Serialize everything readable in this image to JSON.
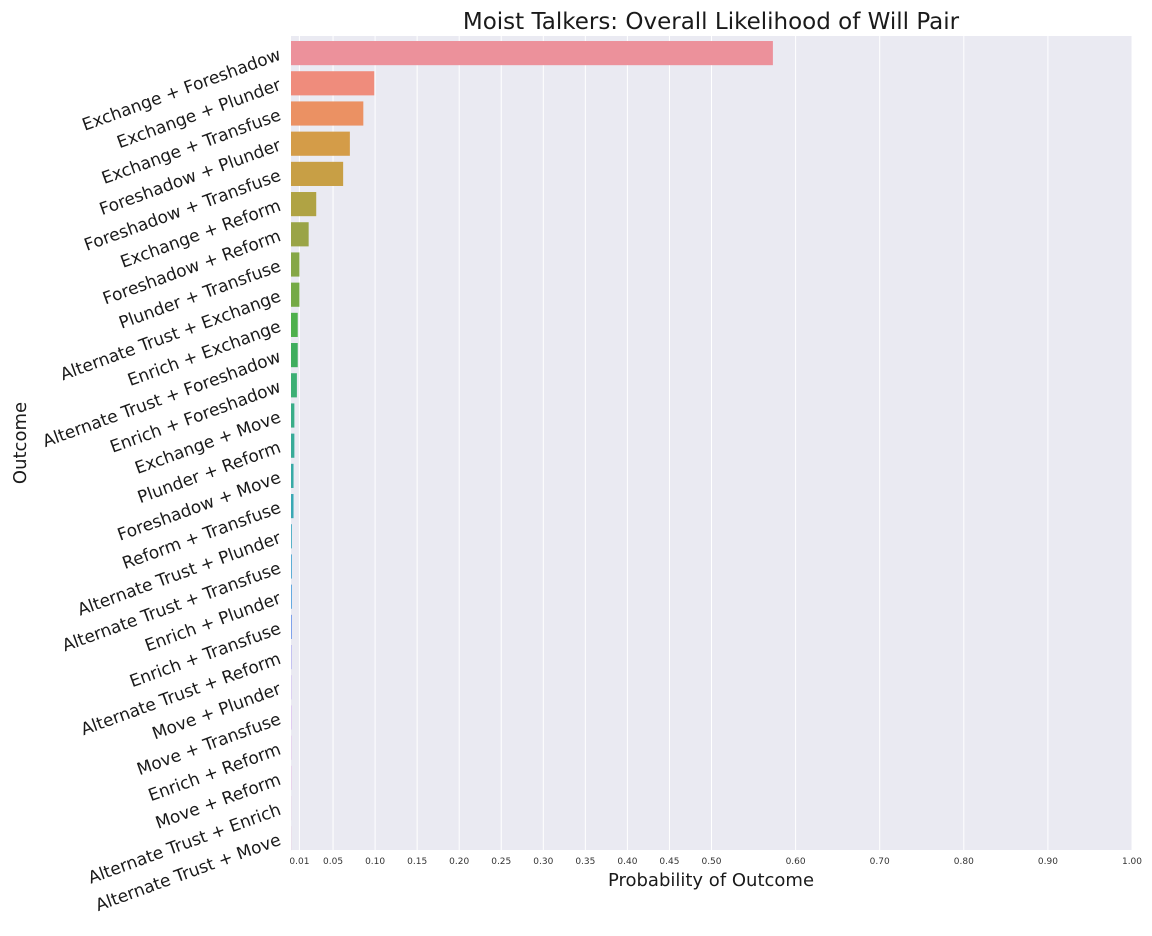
{
  "chart_data": {
    "type": "bar",
    "orientation": "horizontal",
    "title": "Moist Talkers: Overall Likelihood of Will Pair",
    "xlabel": "Probability of Outcome",
    "ylabel": "Outcome",
    "xlim": [
      0,
      1.0
    ],
    "grid": true,
    "x_ticks": [
      {
        "value": 0.01,
        "label": "0.01"
      },
      {
        "value": 0.05,
        "label": "0.05"
      },
      {
        "value": 0.1,
        "label": "0.10"
      },
      {
        "value": 0.15,
        "label": "0.15"
      },
      {
        "value": 0.2,
        "label": "0.20"
      },
      {
        "value": 0.25,
        "label": "0.25"
      },
      {
        "value": 0.3,
        "label": "0.30"
      },
      {
        "value": 0.35,
        "label": "0.35"
      },
      {
        "value": 0.4,
        "label": "0.40"
      },
      {
        "value": 0.45,
        "label": "0.45"
      },
      {
        "value": 0.5,
        "label": "0.50"
      },
      {
        "value": 0.6,
        "label": "0.60"
      },
      {
        "value": 0.7,
        "label": "0.70"
      },
      {
        "value": 0.8,
        "label": "0.80"
      },
      {
        "value": 0.9,
        "label": "0.90"
      },
      {
        "value": 1.0,
        "label": "1.00"
      }
    ],
    "categories": [
      "Exchange + Foreshadow",
      "Exchange + Plunder",
      "Exchange + Transfuse",
      "Foreshadow + Plunder",
      "Foreshadow + Transfuse",
      "Exchange + Reform",
      "Foreshadow + Reform",
      "Plunder + Transfuse",
      "Alternate Trust + Exchange",
      "Enrich + Exchange",
      "Alternate Trust + Foreshadow",
      "Enrich + Foreshadow",
      "Exchange + Move",
      "Plunder + Reform",
      "Foreshadow + Move",
      "Reform + Transfuse",
      "Alternate Trust + Plunder",
      "Alternate Trust + Transfuse",
      "Enrich + Plunder",
      "Enrich + Transfuse",
      "Alternate Trust + Reform",
      "Move + Plunder",
      "Move + Transfuse",
      "Enrich + Reform",
      "Move + Reform",
      "Alternate Trust + Enrich",
      "Alternate Trust + Move"
    ],
    "values": [
      0.573,
      0.099,
      0.086,
      0.07,
      0.062,
      0.03,
      0.021,
      0.01,
      0.01,
      0.008,
      0.008,
      0.007,
      0.004,
      0.004,
      0.003,
      0.003,
      0.001,
      0.001,
      0.001,
      0.001,
      0.0005,
      0.0003,
      0.0003,
      0.0002,
      0.0002,
      0.0001,
      0.0001
    ],
    "colors": [
      "#ec919b",
      "#ef8c7c",
      "#eb9163",
      "#d49c48",
      "#c89f45",
      "#b0a344",
      "#9aa447",
      "#86a746",
      "#75aa46",
      "#4fb04d",
      "#40ae5e",
      "#3daf74",
      "#3aad88",
      "#39ab98",
      "#38aaa6",
      "#3aa8b4",
      "#3ca7c1",
      "#43a2d0",
      "#4e9ede",
      "#6d95ea",
      "#8f8af0",
      "#ad80ef",
      "#c475ed",
      "#d86ce2",
      "#e56ad2",
      "#ea6cbf",
      "#ed77ac"
    ]
  }
}
